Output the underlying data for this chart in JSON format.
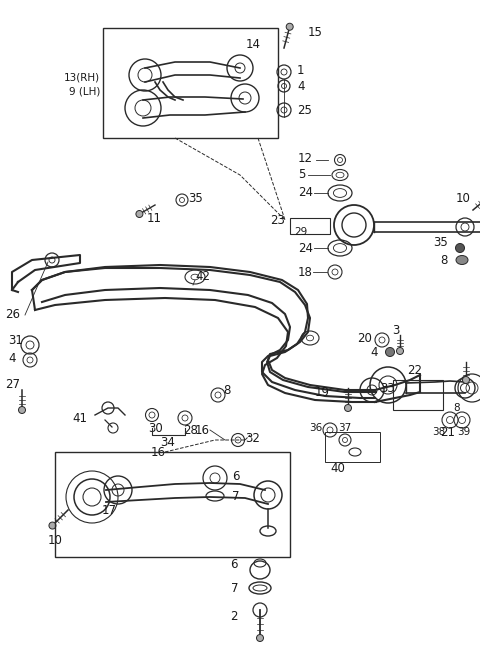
{
  "bg_color": "#ffffff",
  "line_color": "#2a2a2a",
  "fig_width": 4.8,
  "fig_height": 6.72,
  "dpi": 100
}
